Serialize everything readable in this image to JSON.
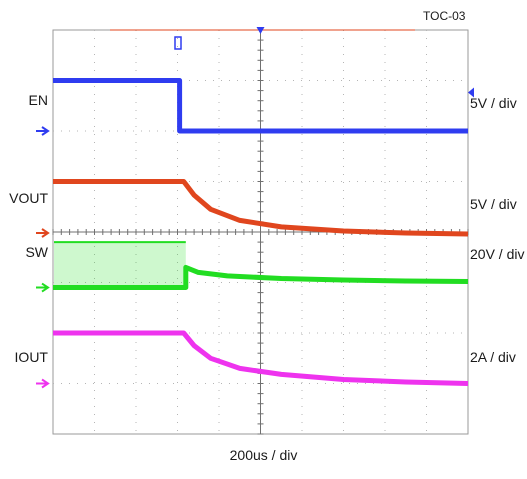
{
  "figure_id": "TOC-03",
  "time_scale": "200us / div",
  "channels": [
    {
      "name": "EN",
      "scale": "5V / div",
      "color": "#2f3cf0"
    },
    {
      "name": "VOUT",
      "scale": "5V / div",
      "color": "#e0461e"
    },
    {
      "name": "SW",
      "scale": "20V / div",
      "color": "#22dd22"
    },
    {
      "name": "IOUT",
      "scale": "2A / div",
      "color": "#ee33ee"
    }
  ],
  "chart_data": {
    "type": "line",
    "title": "",
    "xlabel": "200us / div",
    "ylabel": "",
    "xlim": [
      0,
      10
    ],
    "ylim": [
      -4,
      4
    ],
    "x_units": "div",
    "grid": true,
    "trigger_x": 6.2,
    "series": [
      {
        "name": "EN",
        "x": [
          0,
          3.05,
          3.05,
          10
        ],
        "values": [
          3.0,
          3.0,
          2.0,
          2.0
        ]
      },
      {
        "name": "VOUT",
        "x": [
          0,
          3.15,
          3.4,
          3.8,
          4.5,
          5.5,
          7.0,
          8.5,
          10
        ],
        "values": [
          1.0,
          1.0,
          0.73,
          0.45,
          0.23,
          0.1,
          0.02,
          -0.02,
          -0.04
        ]
      },
      {
        "name": "SW",
        "x": [
          0,
          3.2,
          3.2,
          3.5,
          4.2,
          5.5,
          7.0,
          8.5,
          10
        ],
        "values": [
          -1.1,
          -1.1,
          -0.7,
          -0.8,
          -0.87,
          -0.92,
          -0.95,
          -0.97,
          -0.98
        ]
      },
      {
        "name": "IOUT",
        "x": [
          0,
          3.15,
          3.4,
          3.8,
          4.5,
          5.5,
          7.0,
          8.5,
          10
        ],
        "values": [
          -2.0,
          -2.0,
          -2.25,
          -2.5,
          -2.7,
          -2.82,
          -2.92,
          -2.97,
          -3.0
        ]
      }
    ]
  }
}
